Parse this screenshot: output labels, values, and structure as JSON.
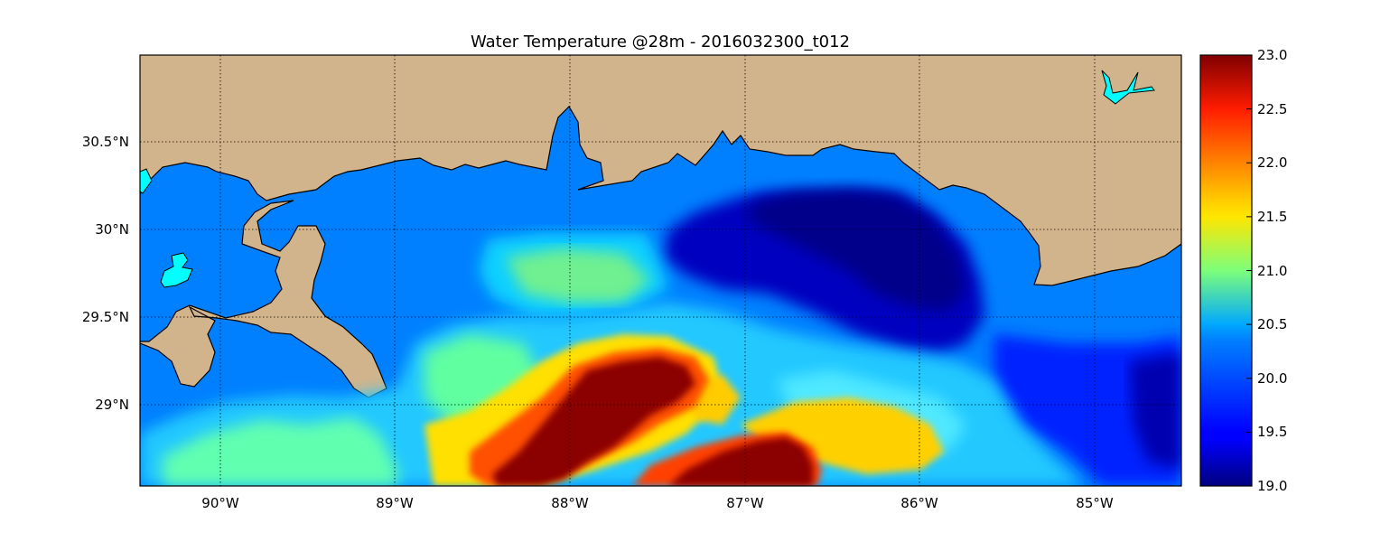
{
  "title": "Water Temperature @28m - 2016032300_t012",
  "map": {
    "lon_range": [
      -90.45,
      -84.5
    ],
    "lat_range": [
      28.55,
      31.0
    ],
    "lat_ticks": [
      {
        "value": 30.5,
        "label": "30.5°N"
      },
      {
        "value": 30.0,
        "label": "30°N"
      },
      {
        "value": 29.5,
        "label": "29.5°N"
      },
      {
        "value": 29.0,
        "label": "29°N"
      }
    ],
    "lon_ticks": [
      {
        "value": -90,
        "label": "90°W"
      },
      {
        "value": -89,
        "label": "89°W"
      },
      {
        "value": -88,
        "label": "88°W"
      },
      {
        "value": -87,
        "label": "87°W"
      },
      {
        "value": -86,
        "label": "86°W"
      },
      {
        "value": -85,
        "label": "85°W"
      }
    ],
    "grid": "dotted",
    "land_color": "#d2b48c",
    "lake_color": "#00ffff",
    "no_data_ocean_color": "#0080ff",
    "colormap": "jet"
  },
  "colorbar": {
    "min": 19.0,
    "max": 23.0,
    "ticks": [
      "23.0",
      "22.5",
      "22.0",
      "21.5",
      "21.0",
      "20.5",
      "20.0",
      "19.5",
      "19.0"
    ]
  }
}
